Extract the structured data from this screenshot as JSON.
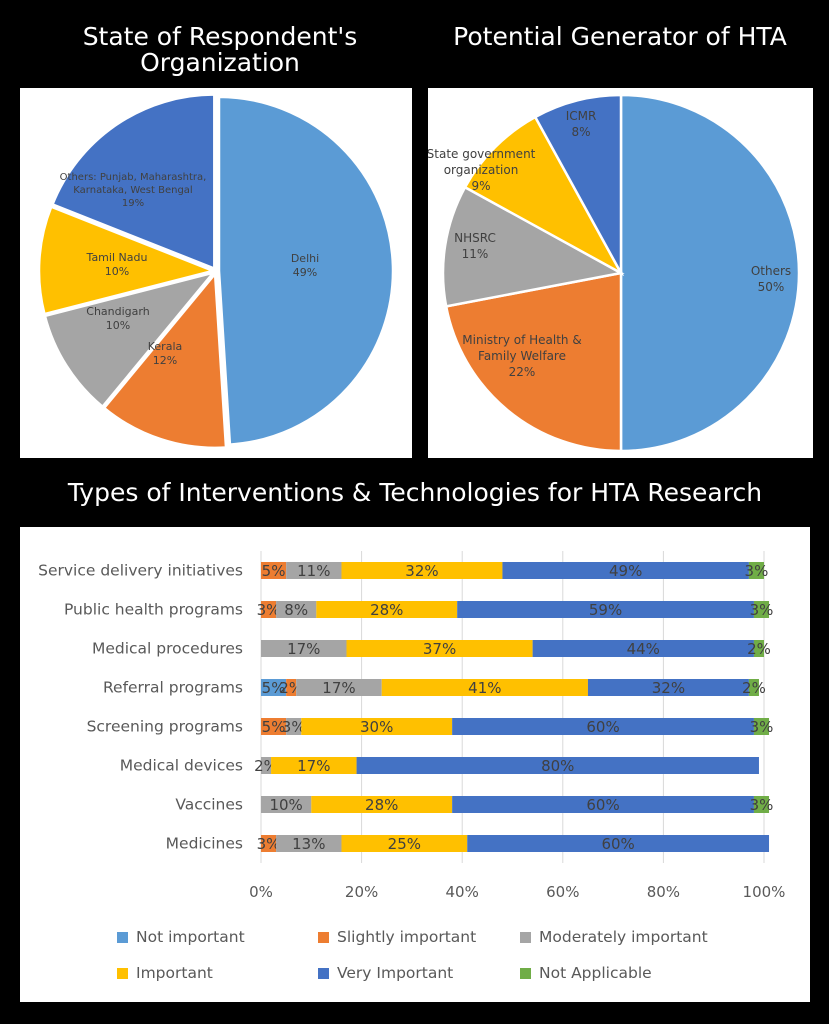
{
  "chart_data": [
    {
      "type": "pie",
      "title": "State of Respondent's Organization",
      "slices": [
        {
          "label": "Delhi",
          "value": 49,
          "display": "49%",
          "color": "#5B9BD5"
        },
        {
          "label": "Kerala",
          "value": 12,
          "display": "12%",
          "color": "#ED7D31"
        },
        {
          "label": "Chandigarh",
          "value": 10,
          "display": "10%",
          "color": "#A5A5A5"
        },
        {
          "label": "Tamil Nadu",
          "value": 10,
          "display": "10%",
          "color": "#FFC000"
        },
        {
          "label": "Others: Punjab, Maharashtra, Karnataka, West Bengal",
          "value": 19,
          "display": "19%",
          "color": "#4472C4"
        }
      ]
    },
    {
      "type": "pie",
      "title": "Potential Generator of HTA",
      "slices": [
        {
          "label": "Others",
          "value": 50,
          "display": "50%",
          "color": "#5B9BD5"
        },
        {
          "label": "Ministry of Health & Family Welfare",
          "value": 22,
          "display": "22%",
          "color": "#ED7D31"
        },
        {
          "label": "NHSRC",
          "value": 11,
          "display": "11%",
          "color": "#A5A5A5"
        },
        {
          "label": "State government organization",
          "value": 9,
          "display": "9%",
          "color": "#FFC000"
        },
        {
          "label": "ICMR",
          "value": 8,
          "display": "8%",
          "color": "#4472C4"
        }
      ]
    },
    {
      "type": "bar",
      "orientation": "horizontal",
      "stacked": "percent",
      "title": "Types of Interventions & Technologies for HTA Research",
      "categories": [
        "Service delivery initiatives",
        "Public health programs",
        "Medical procedures",
        "Referral programs",
        "Screening programs",
        "Medical devices",
        "Vaccines",
        "Medicines"
      ],
      "series": [
        {
          "name": "Not important",
          "color": "#5B9BD5",
          "values": [
            0,
            0,
            0,
            5,
            0,
            0,
            0,
            0
          ]
        },
        {
          "name": "Slightly important",
          "color": "#ED7D31",
          "values": [
            5,
            3,
            0,
            2,
            5,
            0,
            0,
            3
          ]
        },
        {
          "name": "Moderately important",
          "color": "#A5A5A5",
          "values": [
            11,
            8,
            17,
            17,
            3,
            2,
            10,
            13
          ]
        },
        {
          "name": "Important",
          "color": "#FFC000",
          "values": [
            32,
            28,
            37,
            41,
            30,
            17,
            28,
            25
          ]
        },
        {
          "name": "Very Important",
          "color": "#4472C4",
          "values": [
            49,
            59,
            44,
            32,
            60,
            80,
            60,
            60
          ]
        },
        {
          "name": "Not Applicable",
          "color": "#70AD47",
          "values": [
            3,
            3,
            2,
            2,
            3,
            0,
            3,
            0
          ]
        }
      ],
      "xlim": [
        0,
        100
      ],
      "xticks": [
        "0%",
        "20%",
        "40%",
        "60%",
        "80%",
        "100%"
      ],
      "grid": true,
      "legend": "bottom"
    }
  ]
}
